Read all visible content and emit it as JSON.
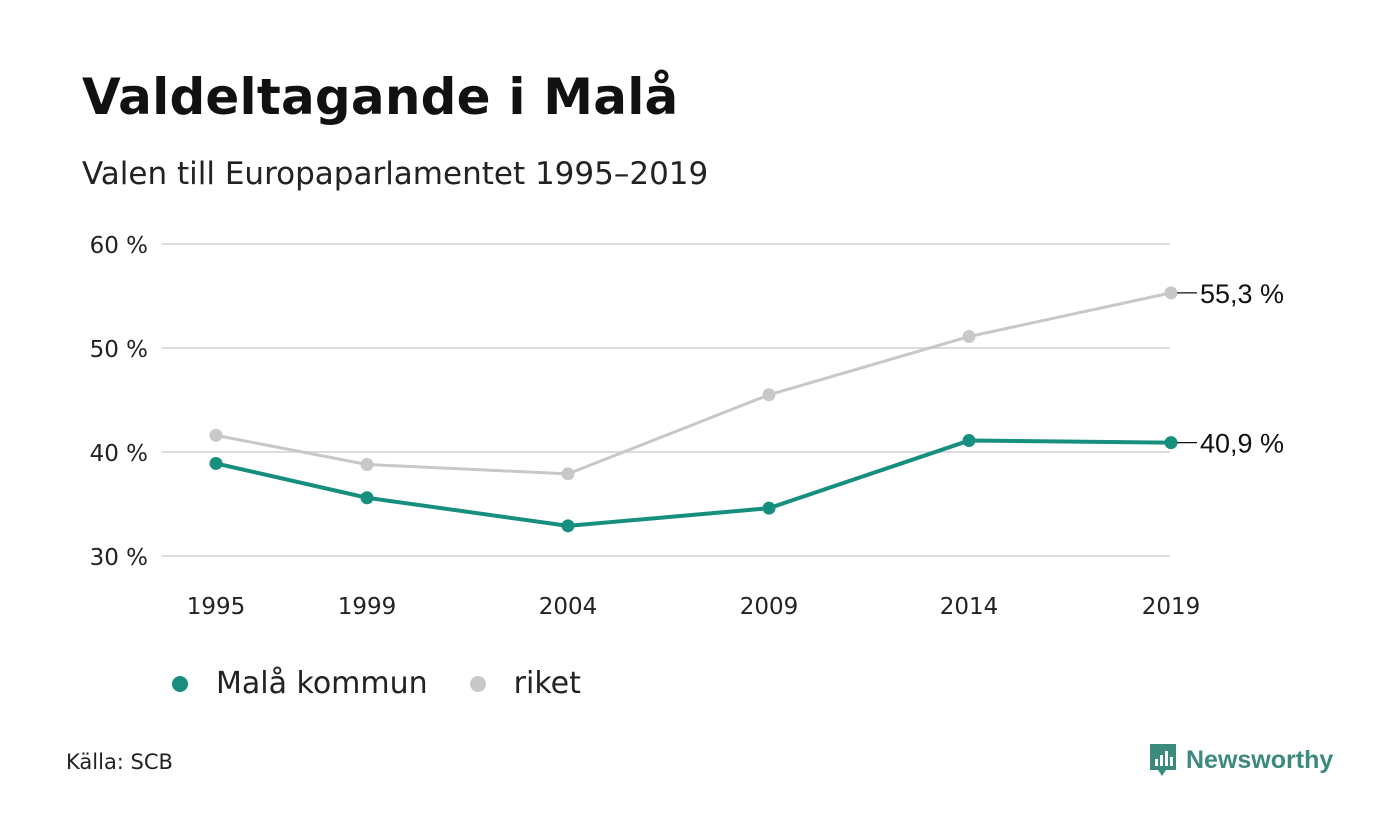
{
  "title": "Valdeltagande i Malå",
  "subtitle": "Valen till Europaparlamentet 1995–2019",
  "source": "Källa: SCB",
  "brand": {
    "name": "Newsworthy",
    "color": "#3a8a7e",
    "icon": "newsworthy-logo-icon"
  },
  "chart_data": {
    "type": "line",
    "categories": [
      "1995",
      "1999",
      "2004",
      "2009",
      "2014",
      "2019"
    ],
    "x": [
      1995,
      1999,
      2004,
      2009,
      2014,
      2019
    ],
    "series": [
      {
        "name": "Malå kommun",
        "color": "#178f7f",
        "values": [
          38.9,
          35.6,
          32.9,
          34.6,
          41.1,
          40.9
        ],
        "end_label": "40,9 %"
      },
      {
        "name": "riket",
        "color": "#c8c8c8",
        "values": [
          41.6,
          38.8,
          37.9,
          45.5,
          51.1,
          55.3
        ],
        "end_label": "55,3 %"
      }
    ],
    "yticks": [
      30,
      40,
      50,
      60
    ],
    "ytick_labels": [
      "30 %",
      "40 %",
      "50 %",
      "60 %"
    ],
    "ylim": [
      30,
      60
    ],
    "grid": true,
    "legend": "bottom"
  }
}
